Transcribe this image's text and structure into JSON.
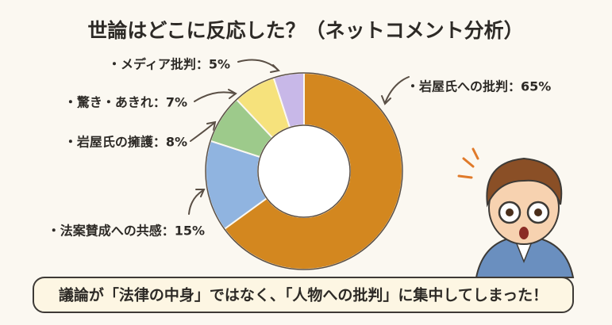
{
  "chart_data": {
    "type": "donut",
    "title": "世論はどこに反応した？（ネットコメント分析）",
    "categories": [
      "・岩屋氏への批判：65%",
      "・法案賛成への共感：15%",
      "・岩屋氏の擁護：8%",
      "・驚き・あきれ：7%",
      "・メディア批判：5%"
    ],
    "values": [
      65,
      15,
      8,
      7,
      5
    ],
    "colors": [
      "#d3871f",
      "#90b4e0",
      "#9dca8b",
      "#f6e27c",
      "#c8b8e8"
    ],
    "caption": "議論が「法律の中身」ではなく、「人物への批判」に集中してしまった！"
  }
}
